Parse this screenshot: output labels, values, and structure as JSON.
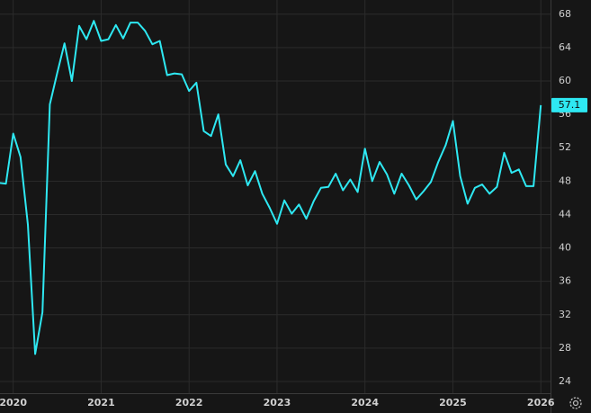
{
  "chart_data": {
    "type": "line",
    "color": "#2ee8f2",
    "grid": true,
    "x": [
      2019.833,
      2019.917,
      2020,
      2020.083,
      2020.167,
      2020.25,
      2020.333,
      2020.417,
      2020.5,
      2020.583,
      2020.667,
      2020.75,
      2020.833,
      2020.917,
      2021,
      2021.083,
      2021.167,
      2021.25,
      2021.333,
      2021.417,
      2021.5,
      2021.583,
      2021.667,
      2021.75,
      2021.833,
      2021.917,
      2022,
      2022.083,
      2022.167,
      2022.25,
      2022.333,
      2022.417,
      2022.5,
      2022.583,
      2022.667,
      2022.75,
      2022.833,
      2022.917,
      2023,
      2023.083,
      2023.167,
      2023.25,
      2023.333,
      2023.417,
      2023.5,
      2023.583,
      2023.667,
      2023.75,
      2023.833,
      2023.917,
      2024,
      2024.083,
      2024.167,
      2024.25,
      2024.333,
      2024.417,
      2024.5,
      2024.583,
      2024.667,
      2024.75,
      2024.833,
      2024.917,
      2025,
      2025.083,
      2025.167,
      2025.25,
      2025.333,
      2025.417,
      2025.5,
      2025.583,
      2025.667,
      2025.75,
      2025.833,
      2025.917,
      2026
    ],
    "values": [
      47.8,
      47.7,
      53.7,
      50.9,
      42.8,
      27.3,
      32.3,
      57.2,
      60.9,
      64.5,
      60.0,
      66.6,
      65.0,
      67.2,
      64.8,
      65.0,
      66.7,
      65.1,
      67.0,
      67.0,
      66.0,
      64.4,
      64.8,
      60.7,
      60.9,
      60.8,
      58.8,
      59.8,
      54.0,
      53.4,
      56.0,
      50.0,
      48.6,
      50.5,
      47.5,
      49.2,
      46.5,
      44.8,
      42.9,
      45.7,
      44.1,
      45.2,
      43.5,
      45.6,
      47.2,
      47.3,
      48.9,
      46.9,
      48.2,
      46.7,
      51.9,
      48.0,
      50.3,
      48.8,
      46.5,
      48.9,
      47.5,
      45.8,
      46.8,
      47.9,
      50.3,
      52.3,
      55.2,
      48.6,
      45.3,
      47.2,
      47.6,
      46.5,
      47.3,
      51.4,
      49.0,
      49.4,
      47.4,
      47.4,
      57.1
    ],
    "xlim": [
      2019.85,
      2026.11
    ],
    "xticks": [
      2020,
      2021,
      2022,
      2023,
      2024,
      2025,
      2026
    ],
    "ylim": [
      22.6,
      69.7
    ],
    "yticks": [
      24,
      28,
      32,
      36,
      40,
      44,
      48,
      52,
      56,
      60,
      64,
      68
    ]
  }
}
